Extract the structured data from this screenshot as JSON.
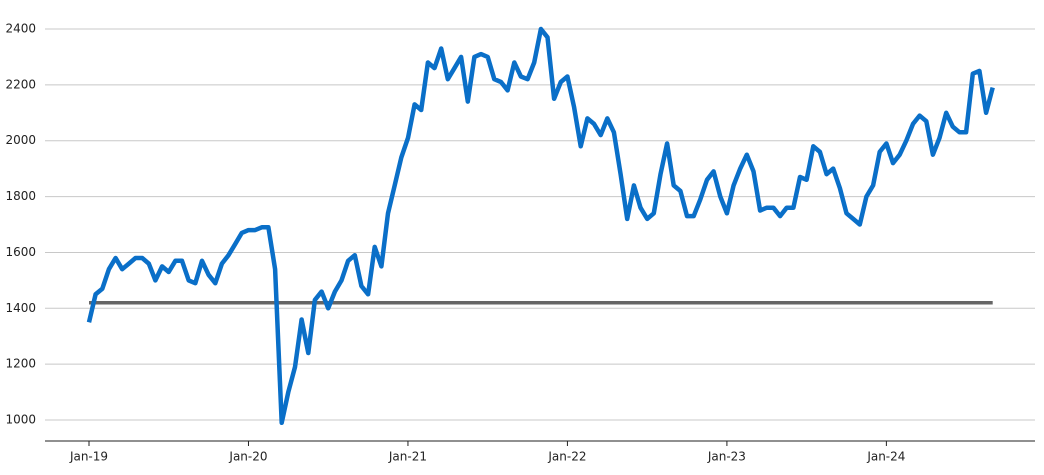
{
  "chart_data": {
    "type": "line",
    "categories": [
      "Jan-19",
      null,
      null,
      null,
      null,
      null,
      null,
      null,
      null,
      null,
      null,
      null,
      null,
      null,
      null,
      null,
      null,
      null,
      null,
      null,
      null,
      null,
      null,
      null,
      "Jan-20",
      null,
      null,
      null,
      null,
      null,
      null,
      null,
      null,
      null,
      null,
      null,
      null,
      null,
      null,
      null,
      null,
      null,
      null,
      null,
      null,
      null,
      null,
      null,
      "Jan-21",
      null,
      null,
      null,
      null,
      null,
      null,
      null,
      null,
      null,
      null,
      null,
      null,
      null,
      null,
      null,
      null,
      null,
      null,
      null,
      null,
      null,
      null,
      null,
      "Jan-22",
      null,
      null,
      null,
      null,
      null,
      null,
      null,
      null,
      null,
      null,
      null,
      null,
      null,
      null,
      null,
      null,
      null,
      null,
      null,
      null,
      null,
      null,
      null,
      "Jan-23",
      null,
      null,
      null,
      null,
      null,
      null,
      null,
      null,
      null,
      null,
      null,
      null,
      null,
      null,
      null,
      null,
      null,
      null,
      null,
      null,
      null,
      null,
      null,
      "Jan-24",
      null,
      null,
      null,
      null,
      null,
      null,
      null,
      null,
      null,
      null,
      null,
      null,
      null,
      null,
      null,
      null
    ],
    "series": [
      {
        "color": "#0a6fc8",
        "values": [
          1350,
          1450,
          1470,
          1540,
          1580,
          1540,
          1560,
          1580,
          1580,
          1560,
          1500,
          1550,
          1530,
          1570,
          1570,
          1500,
          1490,
          1570,
          1520,
          1490,
          1560,
          1590,
          1630,
          1670,
          1680,
          1680,
          1690,
          1690,
          1540,
          990,
          1100,
          1190,
          1360,
          1240,
          1430,
          1460,
          1400,
          1460,
          1500,
          1570,
          1590,
          1480,
          1450,
          1620,
          1550,
          1740,
          1840,
          1940,
          2010,
          2130,
          2110,
          2280,
          2260,
          2330,
          2220,
          2260,
          2300,
          2140,
          2300,
          2310,
          2300,
          2220,
          2210,
          2180,
          2280,
          2230,
          2220,
          2280,
          2400,
          2370,
          2150,
          2210,
          2230,
          2120,
          1980,
          2080,
          2060,
          2020,
          2080,
          2030,
          1880,
          1720,
          1840,
          1760,
          1720,
          1740,
          1880,
          1990,
          1840,
          1820,
          1730,
          1730,
          1790,
          1860,
          1890,
          1800,
          1740,
          1840,
          1900,
          1950,
          1890,
          1750,
          1760,
          1760,
          1730,
          1760,
          1760,
          1870,
          1860,
          1980,
          1960,
          1880,
          1900,
          1830,
          1740,
          1720,
          1700,
          1800,
          1840,
          1960,
          1990,
          1920,
          1950,
          2000,
          2060,
          2090,
          2070,
          1950,
          2010,
          2100,
          2050,
          2030,
          2030,
          2240,
          2250,
          2100,
          2190
        ]
      }
    ],
    "hline": {
      "value": 1420,
      "color": "#666666"
    },
    "ylim": [
      925,
      2450
    ],
    "yticks": [
      1000,
      1200,
      1400,
      1600,
      1800,
      2000,
      2200,
      2400
    ],
    "grid": true
  }
}
